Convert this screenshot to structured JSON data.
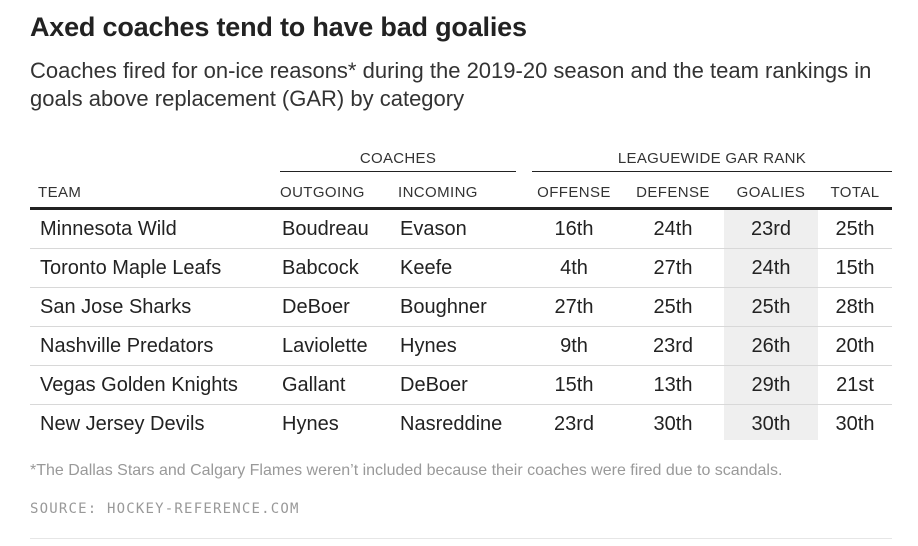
{
  "chart_data": {
    "type": "table",
    "title": "Axed coaches tend to have bad goalies",
    "subtitle": "Coaches fired for on-ice reasons* during the 2019-20 season and the team rankings in goals above replacement (GAR) by category",
    "groups": [
      "COACHES",
      "LEAGUEWIDE GAR RANK"
    ],
    "columns": [
      "TEAM",
      "OUTGOING",
      "INCOMING",
      "OFFENSE",
      "DEFENSE",
      "GOALIES",
      "TOTAL"
    ],
    "highlight_column": "GOALIES",
    "highlight_color": "#efefef",
    "rows": [
      {
        "team": "Minnesota Wild",
        "outgoing": "Boudreau",
        "incoming": "Evason",
        "offense": "16th",
        "defense": "24th",
        "goalies": "23rd",
        "total": "25th"
      },
      {
        "team": "Toronto Maple Leafs",
        "outgoing": "Babcock",
        "incoming": "Keefe",
        "offense": "4th",
        "defense": "27th",
        "goalies": "24th",
        "total": "15th"
      },
      {
        "team": "San Jose Sharks",
        "outgoing": "DeBoer",
        "incoming": "Boughner",
        "offense": "27th",
        "defense": "25th",
        "goalies": "25th",
        "total": "28th"
      },
      {
        "team": "Nashville Predators",
        "outgoing": "Laviolette",
        "incoming": "Hynes",
        "offense": "9th",
        "defense": "23rd",
        "goalies": "26th",
        "total": "20th"
      },
      {
        "team": "Vegas Golden Knights",
        "outgoing": "Gallant",
        "incoming": "DeBoer",
        "offense": "15th",
        "defense": "13th",
        "goalies": "29th",
        "total": "21st"
      },
      {
        "team": "New Jersey Devils",
        "outgoing": "Hynes",
        "incoming": "Nasreddine",
        "offense": "23rd",
        "defense": "30th",
        "goalies": "30th",
        "total": "30th"
      }
    ],
    "footnote": "*The Dallas Stars and Calgary Flames weren’t included because their coaches were fired due to scandals.",
    "source": "SOURCE: HOCKEY-REFERENCE.COM"
  }
}
